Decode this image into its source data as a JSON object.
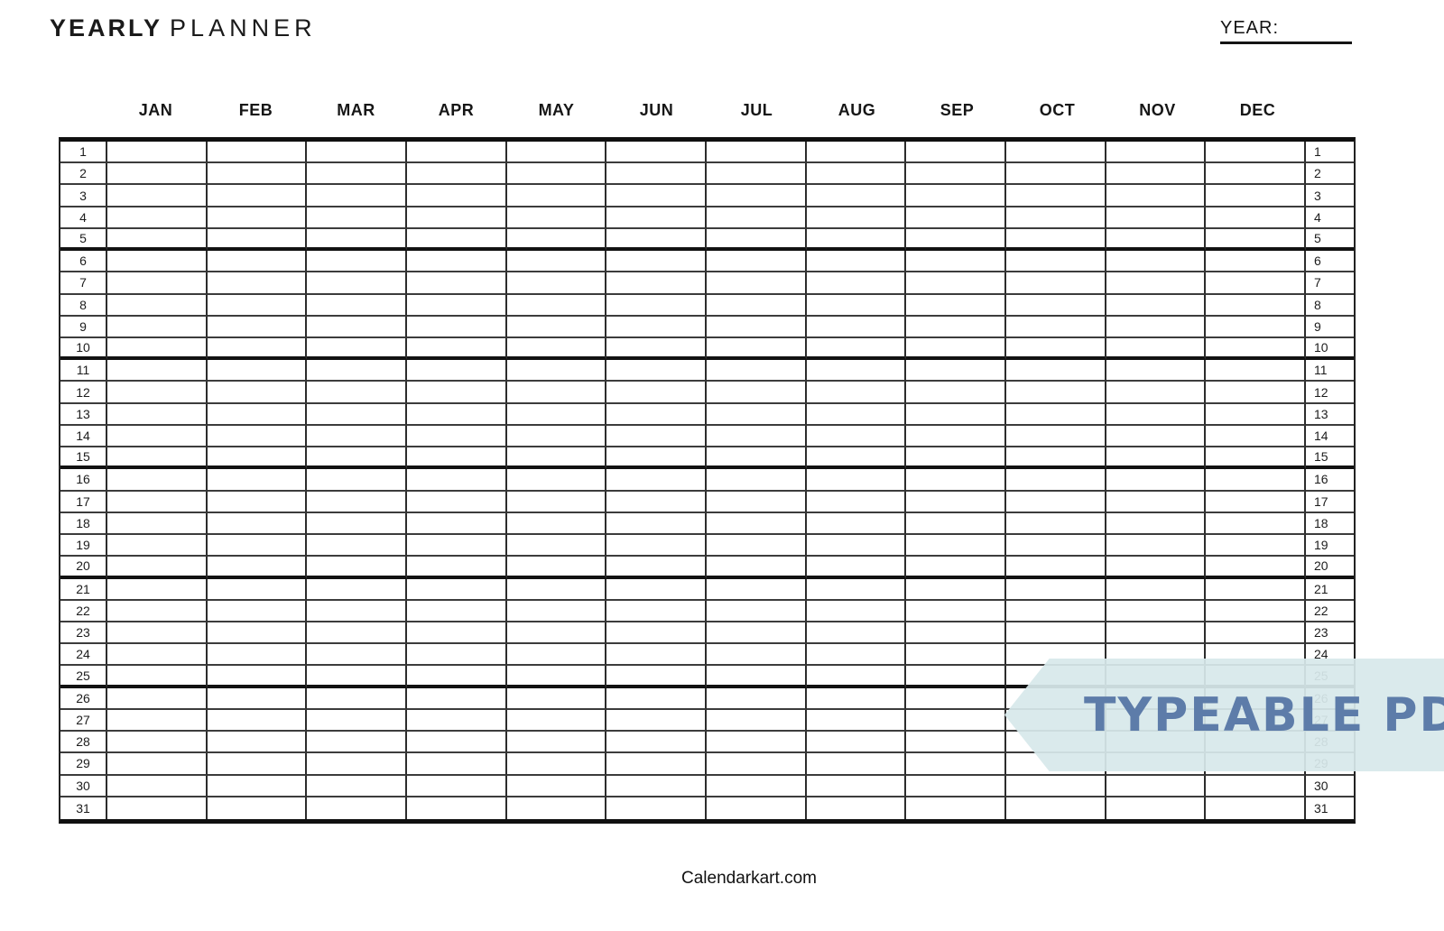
{
  "header": {
    "title_bold": "YEARLY",
    "title_light": "PLANNER",
    "year_label": "YEAR:",
    "year_value": ""
  },
  "months": [
    "JAN",
    "FEB",
    "MAR",
    "APR",
    "MAY",
    "JUN",
    "JUL",
    "AUG",
    "SEP",
    "OCT",
    "NOV",
    "DEC"
  ],
  "day_numbers": [
    "1",
    "2",
    "3",
    "4",
    "5",
    "6",
    "7",
    "8",
    "9",
    "10",
    "11",
    "12",
    "13",
    "14",
    "15",
    "16",
    "17",
    "18",
    "19",
    "20",
    "21",
    "22",
    "23",
    "24",
    "25",
    "26",
    "27",
    "28",
    "29",
    "30",
    "31"
  ],
  "grid": {
    "thick_after_rows": [
      5,
      10,
      15,
      20,
      25
    ]
  },
  "banner": {
    "text": "TYPEABLE PDF",
    "bg_color": "#d7e8eb",
    "text_color": "#5d7ca9"
  },
  "footer": {
    "site_name": "Calendarkart.com"
  }
}
